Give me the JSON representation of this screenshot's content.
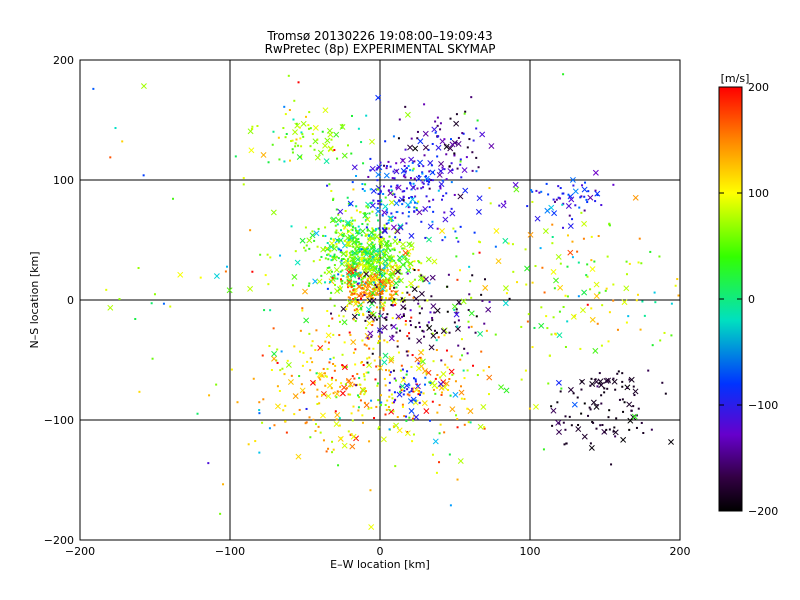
{
  "chart_data": {
    "type": "scatter",
    "title": "Tromsø 20130226 19:08:00–19:09:43",
    "subtitle": "RwPretec (8p) EXPERIMENTAL SKYMAP",
    "xlabel": "E–W location [km]",
    "ylabel": "N–S location [km]",
    "xlim": [
      -200,
      200
    ],
    "ylim": [
      -200,
      200
    ],
    "xticks": [
      "-200",
      "-100",
      "0",
      "100",
      "200"
    ],
    "yticks": [
      "-200",
      "-100",
      "0",
      "100",
      "200"
    ],
    "grid": true,
    "colorbar": {
      "label": "[m/s]",
      "range": [
        -200,
        200
      ],
      "ticks": [
        "200",
        "100",
        "0",
        "-100",
        "-200"
      ],
      "colormap": "rainbow (black→purple→blue→cyan→green→yellow→red)"
    },
    "clusters": [
      {
        "center": [
          -15,
          40
        ],
        "spread": [
          14,
          18
        ],
        "count": 520,
        "vmean": 20,
        "vspread": 90
      },
      {
        "center": [
          -5,
          10
        ],
        "spread": [
          10,
          10
        ],
        "count": 140,
        "vmean": 150,
        "vspread": 40
      },
      {
        "center": [
          5,
          25
        ],
        "spread": [
          12,
          14
        ],
        "count": 160,
        "vmean": 40,
        "vspread": 90
      },
      {
        "center": [
          20,
          90
        ],
        "spread": [
          18,
          20
        ],
        "count": 200,
        "vmean": -110,
        "vspread": 50
      },
      {
        "center": [
          45,
          130
        ],
        "spread": [
          14,
          14
        ],
        "count": 70,
        "vmean": -150,
        "vspread": 50
      },
      {
        "center": [
          -50,
          135
        ],
        "spread": [
          18,
          12
        ],
        "count": 70,
        "vmean": 50,
        "vspread": 80
      },
      {
        "center": [
          -20,
          -65
        ],
        "spread": [
          28,
          28
        ],
        "count": 240,
        "vmean": 120,
        "vspread": 80
      },
      {
        "center": [
          30,
          -75
        ],
        "spread": [
          22,
          25
        ],
        "count": 130,
        "vmean": 100,
        "vspread": 120
      },
      {
        "center": [
          20,
          -75
        ],
        "spread": [
          8,
          10
        ],
        "count": 40,
        "vmean": -110,
        "vspread": 30
      },
      {
        "center": [
          25,
          -10
        ],
        "spread": [
          25,
          18
        ],
        "count": 130,
        "vmean": -170,
        "vspread": 40
      },
      {
        "center": [
          150,
          -90
        ],
        "spread": [
          20,
          16
        ],
        "count": 110,
        "vmean": -185,
        "vspread": 20
      },
      {
        "center": [
          120,
          85
        ],
        "spread": [
          18,
          10
        ],
        "count": 60,
        "vmean": -110,
        "vspread": 50
      },
      {
        "center": [
          130,
          10
        ],
        "spread": [
          40,
          30
        ],
        "count": 130,
        "vmean": 60,
        "vspread": 120
      },
      {
        "center": [
          -20,
          0
        ],
        "spread": [
          90,
          90
        ],
        "count": 220,
        "vmean": 40,
        "vspread": 140
      }
    ]
  }
}
